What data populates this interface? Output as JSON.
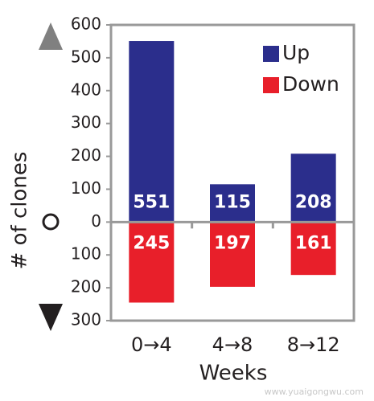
{
  "chart_data": {
    "type": "bar",
    "y_label": "# of clones",
    "x_label": "Weeks",
    "categories": [
      "0→4",
      "4→8",
      "8→12"
    ],
    "series": [
      {
        "name": "Up",
        "color": "#2b2e8c",
        "values": [
          551,
          115,
          208
        ],
        "value_labels": [
          "551",
          "115",
          "208"
        ]
      },
      {
        "name": "Down",
        "color": "#e81f2a",
        "values": [
          -245,
          -197,
          -161
        ],
        "value_labels": [
          "245",
          "197",
          "161"
        ]
      }
    ],
    "ylim": [
      -300,
      600
    ],
    "yticks": [
      600,
      500,
      400,
      300,
      200,
      100,
      0,
      {
        "value": -100,
        "label": "100"
      },
      {
        "value": -200,
        "label": "200"
      },
      {
        "value": -300,
        "label": "300"
      }
    ],
    "legend": "top-right",
    "watermark": "www.yuaigongwu.com"
  }
}
